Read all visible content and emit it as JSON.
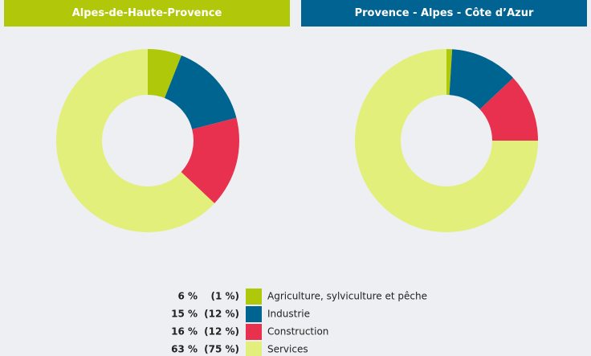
{
  "chart_data": [
    {
      "type": "pie",
      "title": "Alpes-de-Haute-Provence",
      "header_color": "#b1c80a",
      "categories": [
        "Agriculture, sylviculture et pêche",
        "Industrie",
        "Construction",
        "Services"
      ],
      "values": [
        6,
        15,
        16,
        63
      ],
      "value_labels": [
        "6 %",
        "15 %",
        "16 %",
        "63 %"
      ],
      "colors": [
        "#afc90a",
        "#006491",
        "#e8304f",
        "#e2ef7b"
      ]
    },
    {
      "type": "pie",
      "title": "Provence - Alpes - Côte d’Azur",
      "header_color": "#006391",
      "values": [
        1,
        12,
        12,
        75
      ],
      "value_labels": [
        "(1 %)",
        "(12 %)",
        "(12 %)",
        "(75 %)"
      ],
      "colors": [
        "#afc90a",
        "#006491",
        "#e8304f",
        "#e2ef7b"
      ]
    }
  ]
}
